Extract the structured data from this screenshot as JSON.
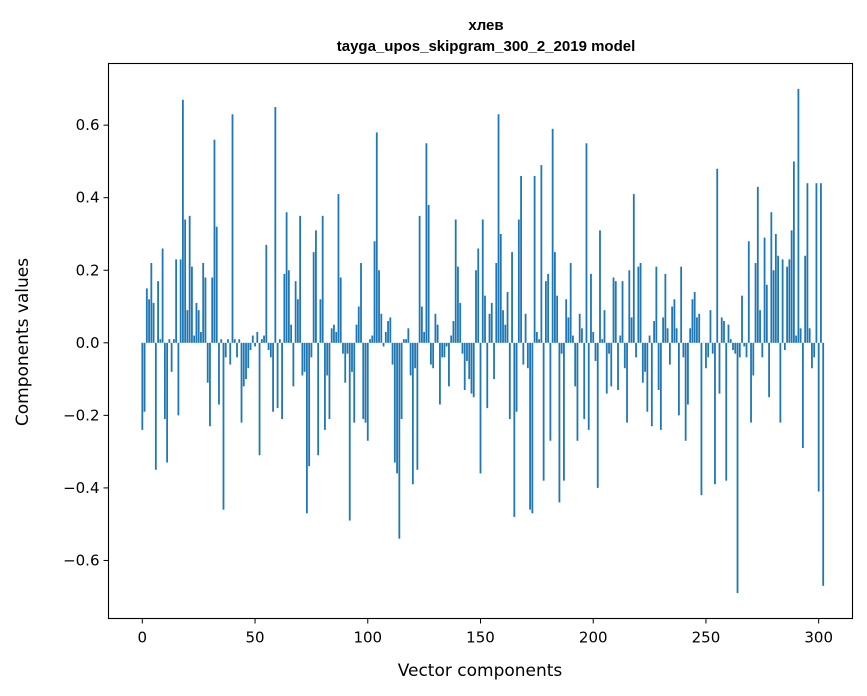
{
  "chart_data": {
    "type": "bar",
    "title": "хлев",
    "subtitle": "tayga_upos_skipgram_300_2_2019 model",
    "xlabel": "Vector components",
    "ylabel": "Components values",
    "xlim": [
      -15,
      315
    ],
    "ylim": [
      -0.76,
      0.77
    ],
    "xticks": [
      0,
      50,
      100,
      150,
      200,
      250,
      300
    ],
    "yticks": [
      -0.6,
      -0.4,
      -0.2,
      0.0,
      0.2,
      0.4,
      0.6
    ],
    "ytick_labels": [
      "−0.6",
      "−0.4",
      "−0.2",
      "0.0",
      "0.2",
      "0.4",
      "0.6"
    ],
    "xtick_labels": [
      "0",
      "50",
      "100",
      "150",
      "200",
      "250",
      "300"
    ],
    "bar_color": "#1f77b4",
    "values": [
      -0.24,
      -0.19,
      0.15,
      0.12,
      0.22,
      0.11,
      -0.35,
      0.17,
      0.01,
      0.26,
      -0.21,
      -0.33,
      0.01,
      -0.08,
      0.01,
      0.23,
      -0.2,
      0.23,
      0.67,
      0.34,
      0.09,
      0.35,
      0.21,
      0.02,
      0.11,
      0.09,
      0.03,
      0.22,
      0.18,
      -0.11,
      -0.23,
      0.18,
      0.56,
      0.32,
      -0.17,
      0.01,
      -0.46,
      -0.04,
      0.01,
      -0.06,
      0.63,
      0.01,
      -0.04,
      0.01,
      -0.22,
      -0.12,
      -0.1,
      -0.07,
      -0.02,
      0.02,
      -0.01,
      0.03,
      -0.31,
      0.01,
      0.02,
      0.27,
      -0.02,
      -0.04,
      -0.19,
      0.65,
      -0.18,
      0.01,
      -0.21,
      0.19,
      0.36,
      0.2,
      0.05,
      -0.12,
      0.17,
      0.12,
      0.35,
      -0.09,
      -0.08,
      -0.47,
      -0.34,
      -0.04,
      0.25,
      0.31,
      -0.31,
      0.12,
      0.35,
      -0.24,
      -0.09,
      -0.21,
      0.04,
      0.05,
      0.03,
      0.41,
      0.18,
      -0.03,
      -0.11,
      -0.03,
      -0.49,
      -0.08,
      -0.22,
      0.05,
      0.1,
      0.22,
      -0.21,
      -0.22,
      -0.27,
      0.01,
      0.02,
      0.28,
      0.58,
      0.2,
      0.08,
      -0.01,
      0.03,
      0.06,
      0.07,
      -0.06,
      -0.33,
      -0.36,
      -0.54,
      -0.21,
      0.01,
      0.01,
      0.04,
      -0.09,
      -0.39,
      -0.07,
      -0.35,
      0.35,
      0.1,
      0.03,
      0.55,
      0.38,
      -0.06,
      -0.07,
      0.08,
      0.05,
      -0.17,
      -0.04,
      -0.04,
      -0.01,
      -0.12,
      0.02,
      0.06,
      0.34,
      0.21,
      0.11,
      -0.03,
      -0.13,
      -0.05,
      -0.1,
      -0.14,
      -0.15,
      0.2,
      0.26,
      -0.36,
      0.34,
      0.13,
      -0.18,
      0.08,
      0.11,
      -0.1,
      0.22,
      0.63,
      0.3,
      0.09,
      0.05,
      0.14,
      -0.21,
      0.25,
      -0.48,
      -0.19,
      0.34,
      0.46,
      -0.06,
      0.08,
      -0.07,
      -0.46,
      -0.47,
      0.46,
      0.03,
      0.01,
      0.49,
      -0.38,
      0.17,
      0.19,
      -0.27,
      0.59,
      0.25,
      0.13,
      -0.44,
      -0.03,
      -0.38,
      0.12,
      0.07,
      0.22,
      0.02,
      -0.12,
      -0.27,
      0.08,
      0.04,
      -0.21,
      0.55,
      -0.24,
      0.19,
      0.03,
      -0.05,
      -0.4,
      0.31,
      0.01,
      0.09,
      -0.14,
      -0.03,
      -0.12,
      0.18,
      0.17,
      -0.13,
      0.02,
      0.17,
      -0.07,
      -0.22,
      0.2,
      0.07,
      0.41,
      -0.04,
      0.21,
      0.22,
      -0.11,
      -0.08,
      -0.19,
      0.02,
      -0.23,
      0.06,
      0.21,
      -0.13,
      -0.24,
      0.07,
      0.19,
      0.04,
      -0.06,
      0.1,
      0.12,
      0.04,
      -0.2,
      0.21,
      -0.04,
      -0.27,
      -0.17,
      0.04,
      0.12,
      0.14,
      0.07,
      0.08,
      -0.42,
      0.0,
      -0.07,
      -0.04,
      0.09,
      -0.03,
      -0.39,
      0.48,
      -0.14,
      0.07,
      0.06,
      -0.38,
      0.05,
      0.01,
      -0.02,
      -0.03,
      -0.69,
      -0.04,
      0.13,
      -0.01,
      -0.04,
      0.28,
      -0.22,
      -0.09,
      0.22,
      0.43,
      0.09,
      -0.04,
      0.29,
      0.16,
      -0.15,
      0.36,
      0.2,
      0.3,
      0.24,
      -0.22,
      0.23,
      -0.02,
      0.21,
      0.23,
      0.31,
      0.5,
      0.02,
      0.7,
      0.04,
      -0.29,
      0.24,
      0.44,
      0.04,
      -0.07,
      -0.04,
      0.44,
      -0.41,
      0.44,
      -0.67
    ]
  }
}
